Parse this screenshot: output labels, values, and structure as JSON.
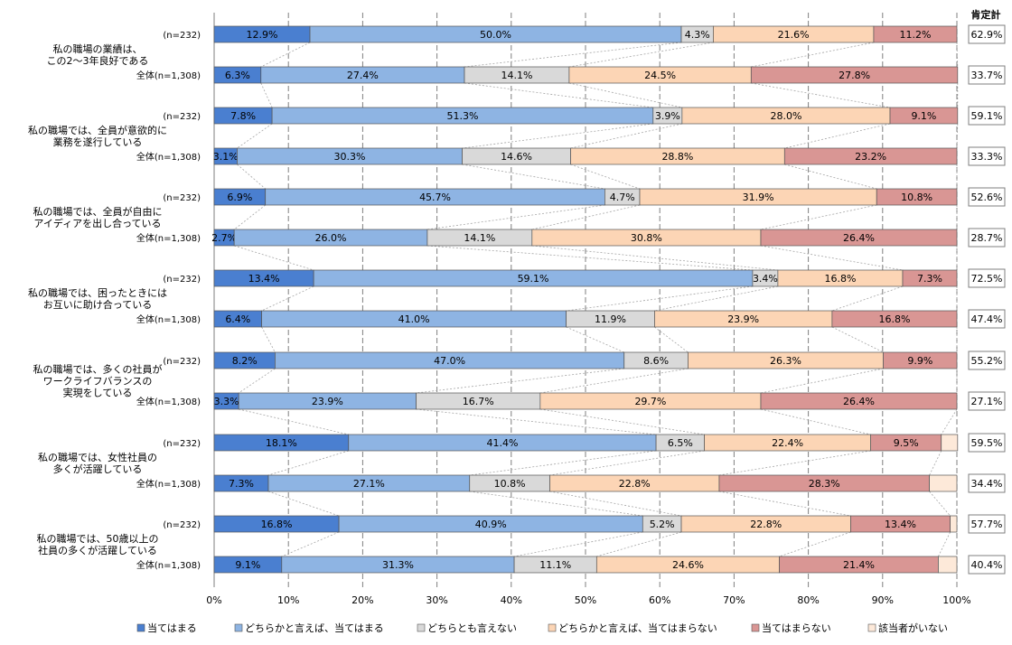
{
  "chart_data": {
    "type": "bar",
    "stacked": "100%",
    "orientation": "horizontal",
    "positive_header": "肯定計",
    "xlim": [
      0,
      100
    ],
    "x_ticks": [
      "0%",
      "10%",
      "20%",
      "30%",
      "40%",
      "50%",
      "60%",
      "70%",
      "80%",
      "90%",
      "100%"
    ],
    "grid": true,
    "legend_position": "bottom",
    "series": [
      {
        "name": "当てはまる",
        "color": "#4a7fd0"
      },
      {
        "name": "どちらかと言えば、当てはまる",
        "color": "#8eb4e3"
      },
      {
        "name": "どちらとも言えない",
        "color": "#d9d9d9"
      },
      {
        "name": "どちらかと言えば、当てはまらない",
        "color": "#fcd5b5"
      },
      {
        "name": "当てはまらない",
        "color": "#d99694"
      },
      {
        "name": "該当者がいない",
        "color": "#fde9d9"
      }
    ],
    "categories": [
      {
        "label_lines": [
          "私の職場の業績は、",
          "この2～3年良好である"
        ],
        "rows": [
          {
            "group": "(n=232)",
            "values": [
              12.9,
              50.0,
              4.3,
              21.6,
              11.2,
              0
            ],
            "labels": [
              "12.9%",
              "50.0%",
              "4.3%",
              "21.6%",
              "11.2%",
              ""
            ],
            "positive": "62.9%"
          },
          {
            "group": "全体(n=1,308)",
            "values": [
              6.3,
              27.4,
              14.1,
              24.5,
              27.8,
              0
            ],
            "labels": [
              "6.3%",
              "27.4%",
              "14.1%",
              "24.5%",
              "27.8%",
              ""
            ],
            "positive": "33.7%"
          }
        ]
      },
      {
        "label_lines": [
          "私の職場では、全員が意欲的に",
          "業務を遂行している"
        ],
        "rows": [
          {
            "group": "(n=232)",
            "values": [
              7.8,
              51.3,
              3.9,
              28.0,
              9.1,
              0
            ],
            "labels": [
              "7.8%",
              "51.3%",
              "3.9%",
              "28.0%",
              "9.1%",
              ""
            ],
            "positive": "59.1%"
          },
          {
            "group": "全体(n=1,308)",
            "values": [
              3.1,
              30.3,
              14.6,
              28.8,
              23.2,
              0
            ],
            "labels": [
              "3.1%",
              "30.3%",
              "14.6%",
              "28.8%",
              "23.2%",
              ""
            ],
            "positive": "33.3%"
          }
        ]
      },
      {
        "label_lines": [
          "私の職場では、全員が自由に",
          "アイディアを出し合っている"
        ],
        "rows": [
          {
            "group": "(n=232)",
            "values": [
              6.9,
              45.7,
              4.7,
              31.9,
              10.8,
              0
            ],
            "labels": [
              "6.9%",
              "45.7%",
              "4.7%",
              "31.9%",
              "10.8%",
              ""
            ],
            "positive": "52.6%"
          },
          {
            "group": "全体(n=1,308)",
            "values": [
              2.7,
              26.0,
              14.1,
              30.8,
              26.4,
              0
            ],
            "labels": [
              "2.7%",
              "26.0%",
              "14.1%",
              "30.8%",
              "26.4%",
              ""
            ],
            "positive": "28.7%"
          }
        ]
      },
      {
        "label_lines": [
          "私の職場では、困ったときには",
          "お互いに助け合っている"
        ],
        "rows": [
          {
            "group": "(n=232)",
            "values": [
              13.4,
              59.1,
              3.4,
              16.8,
              7.3,
              0
            ],
            "labels": [
              "13.4%",
              "59.1%",
              "3.4%",
              "16.8%",
              "7.3%",
              ""
            ],
            "positive": "72.5%"
          },
          {
            "group": "全体(n=1,308)",
            "values": [
              6.4,
              41.0,
              11.9,
              23.9,
              16.8,
              0
            ],
            "labels": [
              "6.4%",
              "41.0%",
              "11.9%",
              "23.9%",
              "16.8%",
              ""
            ],
            "positive": "47.4%"
          }
        ]
      },
      {
        "label_lines": [
          "私の職場では、多くの社員が",
          "ワークライフバランスの",
          "実現をしている"
        ],
        "rows": [
          {
            "group": "(n=232)",
            "values": [
              8.2,
              47.0,
              8.6,
              26.3,
              9.9,
              0
            ],
            "labels": [
              "8.2%",
              "47.0%",
              "8.6%",
              "26.3%",
              "9.9%",
              ""
            ],
            "positive": "55.2%"
          },
          {
            "group": "全体(n=1,308)",
            "values": [
              3.3,
              23.9,
              16.7,
              29.7,
              26.4,
              0
            ],
            "labels": [
              "3.3%",
              "23.9%",
              "16.7%",
              "29.7%",
              "26.4%",
              ""
            ],
            "positive": "27.1%"
          }
        ]
      },
      {
        "label_lines": [
          "私の職場では、女性社員の",
          "多くが活躍している"
        ],
        "rows": [
          {
            "group": "(n=232)",
            "values": [
              18.1,
              41.4,
              6.5,
              22.4,
              9.5,
              2.2
            ],
            "labels": [
              "18.1%",
              "41.4%",
              "6.5%",
              "22.4%",
              "9.5%",
              ""
            ],
            "positive": "59.5%"
          },
          {
            "group": "全体(n=1,308)",
            "values": [
              7.3,
              27.1,
              10.8,
              22.8,
              28.3,
              3.7
            ],
            "labels": [
              "7.3%",
              "27.1%",
              "10.8%",
              "22.8%",
              "28.3%",
              ""
            ],
            "positive": "34.4%"
          }
        ]
      },
      {
        "label_lines": [
          "私の職場では、50歳以上の",
          "社員の多くが活躍している"
        ],
        "rows": [
          {
            "group": "(n=232)",
            "values": [
              16.8,
              40.9,
              5.2,
              22.8,
              13.4,
              0.9
            ],
            "labels": [
              "16.8%",
              "40.9%",
              "5.2%",
              "22.8%",
              "13.4%",
              ""
            ],
            "positive": "57.7%"
          },
          {
            "group": "全体(n=1,308)",
            "values": [
              9.1,
              31.3,
              11.1,
              24.6,
              21.4,
              2.5
            ],
            "labels": [
              "9.1%",
              "31.3%",
              "11.1%",
              "24.6%",
              "21.4%",
              ""
            ],
            "positive": "40.4%"
          }
        ]
      }
    ]
  }
}
